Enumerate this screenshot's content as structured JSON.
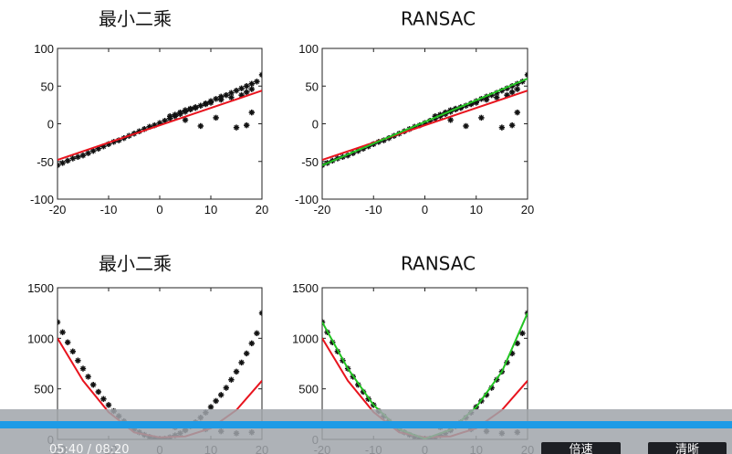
{
  "chart_data": [
    {
      "type": "scatter",
      "title": "最小二乘",
      "xlim": [
        -20,
        20
      ],
      "ylim": [
        -100,
        100
      ],
      "xticks": [
        -20,
        -10,
        0,
        10,
        20
      ],
      "yticks": [
        -100,
        -50,
        0,
        50,
        100
      ],
      "grid": false,
      "series": [
        {
          "kind": "points",
          "color": "#111111",
          "marker": "star",
          "x": [
            -20,
            -19,
            -18,
            -17,
            -16,
            -15,
            -14,
            -13,
            -12,
            -11,
            -10,
            -9,
            -8,
            -7,
            -6,
            -5,
            -4,
            -3,
            -2,
            -1,
            0,
            1,
            2,
            3,
            4,
            5,
            6,
            7,
            8,
            9,
            10,
            11,
            12,
            13,
            14,
            15,
            16,
            17,
            18,
            19,
            20,
            3,
            5,
            7,
            9,
            10,
            12,
            14,
            16,
            17,
            18,
            5,
            8,
            11,
            15,
            17,
            18,
            2,
            4,
            6
          ],
          "y": [
            -55,
            -52,
            -49,
            -46,
            -44,
            -42,
            -39,
            -36,
            -33,
            -30,
            -27,
            -24,
            -22,
            -19,
            -16,
            -13,
            -10,
            -7,
            -4,
            -2,
            1,
            4,
            7,
            10,
            13,
            16,
            19,
            21,
            24,
            27,
            30,
            33,
            36,
            38,
            41,
            44,
            47,
            50,
            53,
            56,
            65,
            12,
            18,
            22,
            26,
            28,
            32,
            35,
            38,
            42,
            46,
            5,
            -3,
            8,
            -5,
            -2,
            15,
            10,
            15,
            20
          ]
        },
        {
          "kind": "line",
          "color": "#e8141e",
          "x": [
            -20,
            20
          ],
          "y": [
            -48,
            44
          ]
        }
      ]
    },
    {
      "type": "scatter",
      "title": "RANSAC",
      "xlim": [
        -20,
        20
      ],
      "ylim": [
        -100,
        100
      ],
      "xticks": [
        -20,
        -10,
        0,
        10,
        20
      ],
      "yticks": [
        -100,
        -50,
        0,
        50,
        100
      ],
      "grid": false,
      "series": [
        {
          "kind": "points",
          "color": "#111111",
          "marker": "star",
          "x": [
            -20,
            -19,
            -18,
            -17,
            -16,
            -15,
            -14,
            -13,
            -12,
            -11,
            -10,
            -9,
            -8,
            -7,
            -6,
            -5,
            -4,
            -3,
            -2,
            -1,
            0,
            1,
            2,
            3,
            4,
            5,
            6,
            7,
            8,
            9,
            10,
            11,
            12,
            13,
            14,
            15,
            16,
            17,
            18,
            19,
            20,
            3,
            5,
            7,
            9,
            10,
            12,
            14,
            16,
            17,
            18,
            5,
            8,
            11,
            15,
            17,
            18,
            2,
            4,
            6
          ],
          "y": [
            -55,
            -52,
            -49,
            -46,
            -44,
            -42,
            -39,
            -36,
            -33,
            -30,
            -27,
            -24,
            -22,
            -19,
            -16,
            -13,
            -10,
            -7,
            -4,
            -2,
            1,
            4,
            7,
            10,
            13,
            16,
            19,
            21,
            24,
            27,
            30,
            33,
            36,
            38,
            41,
            44,
            47,
            50,
            53,
            56,
            65,
            12,
            18,
            22,
            26,
            28,
            32,
            35,
            38,
            42,
            46,
            5,
            -3,
            8,
            -5,
            -2,
            15,
            10,
            15,
            20
          ]
        },
        {
          "kind": "line",
          "color": "#e8141e",
          "x": [
            -20,
            20
          ],
          "y": [
            -48,
            44
          ]
        },
        {
          "kind": "line",
          "color": "#22c322",
          "x": [
            -20,
            20
          ],
          "y": [
            -55,
            60
          ]
        }
      ]
    },
    {
      "type": "scatter",
      "title": "最小二乘",
      "xlim": [
        -20,
        20
      ],
      "ylim": [
        0,
        1500
      ],
      "xticks": [
        -20,
        -10,
        0,
        10,
        20
      ],
      "yticks": [
        0,
        500,
        1000,
        1500
      ],
      "grid": false,
      "series": [
        {
          "kind": "points",
          "color": "#111111",
          "marker": "star",
          "x": [
            -20,
            -19,
            -18,
            -17,
            -16,
            -15,
            -14,
            -13,
            -12,
            -11,
            -10,
            -9,
            -8,
            -7,
            -6,
            -5,
            -4,
            -3,
            -2,
            -1,
            0,
            1,
            2,
            3,
            4,
            5,
            6,
            7,
            8,
            9,
            10,
            11,
            12,
            13,
            14,
            15,
            16,
            17,
            18,
            19,
            20,
            3,
            5,
            9,
            12,
            15,
            18
          ],
          "y": [
            1160,
            1060,
            960,
            870,
            780,
            700,
            620,
            540,
            470,
            400,
            340,
            280,
            230,
            180,
            140,
            100,
            70,
            45,
            25,
            10,
            5,
            8,
            20,
            40,
            60,
            95,
            130,
            170,
            215,
            265,
            320,
            380,
            440,
            510,
            590,
            670,
            760,
            850,
            950,
            1050,
            1250,
            120,
            90,
            100,
            80,
            60,
            70
          ]
        },
        {
          "kind": "line",
          "color": "#e8141e",
          "x": [
            -20,
            -15,
            -10,
            -5,
            0,
            5,
            10,
            15,
            20
          ],
          "y": [
            1000,
            580,
            270,
            70,
            20,
            30,
            110,
            290,
            580
          ]
        }
      ]
    },
    {
      "type": "scatter",
      "title": "RANSAC",
      "xlim": [
        -20,
        20
      ],
      "ylim": [
        0,
        1500
      ],
      "xticks": [
        -20,
        -10,
        0,
        10,
        20
      ],
      "yticks": [
        0,
        500,
        1000,
        1500
      ],
      "grid": false,
      "series": [
        {
          "kind": "points",
          "color": "#111111",
          "marker": "star",
          "x": [
            -20,
            -19,
            -18,
            -17,
            -16,
            -15,
            -14,
            -13,
            -12,
            -11,
            -10,
            -9,
            -8,
            -7,
            -6,
            -5,
            -4,
            -3,
            -2,
            -1,
            0,
            1,
            2,
            3,
            4,
            5,
            6,
            7,
            8,
            9,
            10,
            11,
            12,
            13,
            14,
            15,
            16,
            17,
            18,
            19,
            20,
            3,
            5,
            9,
            12,
            15,
            18
          ],
          "y": [
            1160,
            1060,
            960,
            870,
            780,
            700,
            620,
            540,
            470,
            400,
            340,
            280,
            230,
            180,
            140,
            100,
            70,
            45,
            25,
            10,
            5,
            8,
            20,
            40,
            60,
            95,
            130,
            170,
            215,
            265,
            320,
            380,
            440,
            510,
            590,
            670,
            760,
            850,
            950,
            1050,
            1250,
            120,
            90,
            100,
            80,
            60,
            70
          ]
        },
        {
          "kind": "line",
          "color": "#e8141e",
          "x": [
            -20,
            -15,
            -10,
            -5,
            0,
            5,
            10,
            15,
            20
          ],
          "y": [
            1000,
            580,
            270,
            70,
            20,
            30,
            110,
            290,
            580
          ]
        },
        {
          "kind": "line",
          "color": "#22c322",
          "x": [
            -20,
            -15,
            -10,
            -5,
            0,
            5,
            10,
            15,
            20
          ],
          "y": [
            1160,
            700,
            340,
            100,
            5,
            95,
            320,
            670,
            1250
          ]
        }
      ]
    }
  ],
  "player": {
    "time": "05:40 / 08:20",
    "speed_label": "倍速",
    "resolution_label": "清晰"
  }
}
